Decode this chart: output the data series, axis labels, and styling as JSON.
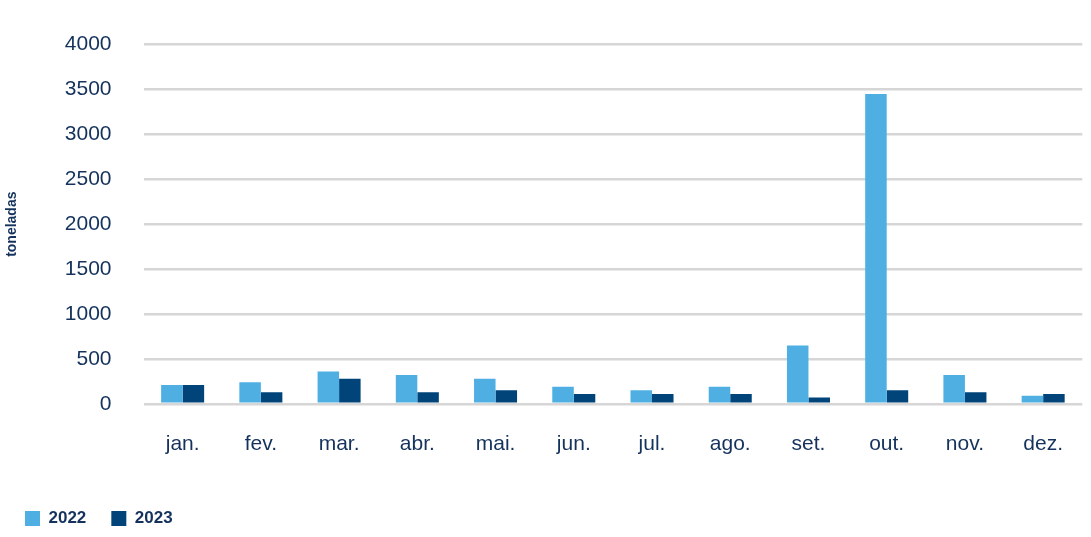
{
  "chart_data": {
    "type": "bar",
    "ylabel": "toneladas",
    "categories": [
      "jan.",
      "fev.",
      "mar.",
      "abr.",
      "mai.",
      "jun.",
      "jul.",
      "ago.",
      "set.",
      "out.",
      "nov.",
      "dez."
    ],
    "series": [
      {
        "name": "2022",
        "color": "#4fafe3",
        "values": [
          210,
          240,
          360,
          320,
          280,
          190,
          150,
          190,
          650,
          3450,
          320,
          90
        ]
      },
      {
        "name": "2023",
        "color": "#00447a",
        "values": [
          210,
          130,
          280,
          130,
          150,
          110,
          110,
          110,
          70,
          150,
          130,
          110
        ]
      }
    ],
    "ylim": [
      0,
      4000
    ],
    "yticks": [
      0,
      500,
      1000,
      1500,
      2000,
      2500,
      3000,
      3500,
      4000
    ],
    "grid": "y",
    "legend": "bottom left"
  }
}
